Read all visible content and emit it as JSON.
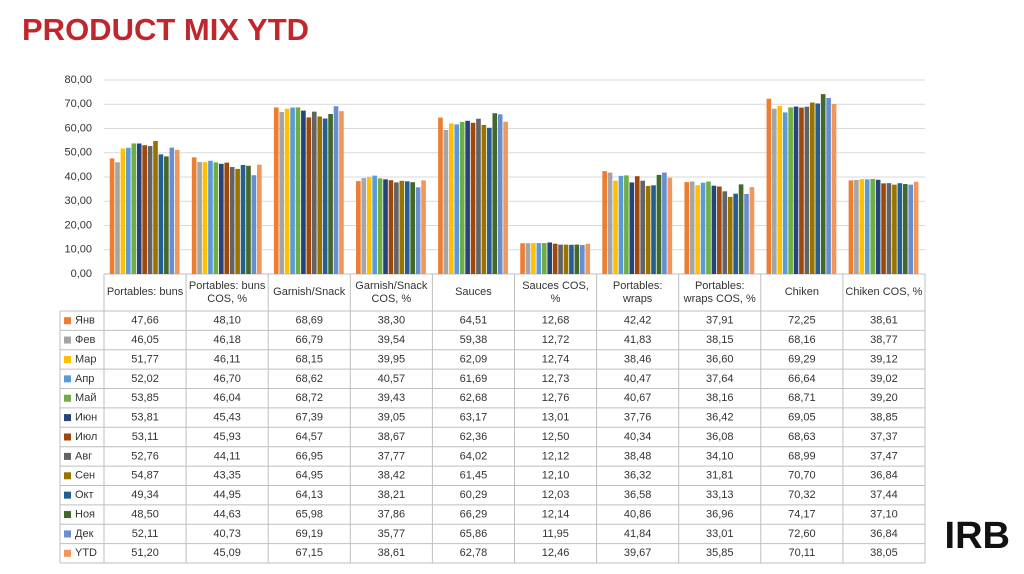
{
  "chart_data": {
    "type": "bar",
    "title": "PRODUCT MIX YTD",
    "logo": "IRB",
    "categories": [
      "Portables: buns",
      "Portables: buns COS, %",
      "Garnish/Snack",
      "Garnish/Snack COS, %",
      "Sauces",
      "Sauces COS, %",
      "Portables: wraps",
      "Portables: wraps COS, %",
      "Chiken",
      "Chiken COS, %"
    ],
    "ylim": [
      0,
      80
    ],
    "yticks": [
      {
        "value": 0,
        "label": "0,00"
      },
      {
        "value": 10,
        "label": "10,00"
      },
      {
        "value": 20,
        "label": "20,00"
      },
      {
        "value": 30,
        "label": "30,00"
      },
      {
        "value": 40,
        "label": "40,00"
      },
      {
        "value": 50,
        "label": "50,00"
      },
      {
        "value": 60,
        "label": "60,00"
      },
      {
        "value": 70,
        "label": "70,00"
      },
      {
        "value": 80,
        "label": "80,00"
      }
    ],
    "grid": true,
    "series": [
      {
        "name": "Янв",
        "color": "#ED7D31",
        "values": [
          47.66,
          48.1,
          68.69,
          38.3,
          64.51,
          12.68,
          42.42,
          37.91,
          72.25,
          38.61
        ],
        "value_labels": [
          "47,66",
          "48,10",
          "68,69",
          "38,30",
          "64,51",
          "12,68",
          "42,42",
          "37,91",
          "72,25",
          "38,61"
        ]
      },
      {
        "name": "Фев",
        "color": "#A5A5A5",
        "values": [
          46.05,
          46.18,
          66.79,
          39.54,
          59.38,
          12.72,
          41.83,
          38.15,
          68.16,
          38.77
        ],
        "value_labels": [
          "46,05",
          "46,18",
          "66,79",
          "39,54",
          "59,38",
          "12,72",
          "41,83",
          "38,15",
          "68,16",
          "38,77"
        ]
      },
      {
        "name": "Мар",
        "color": "#FFC000",
        "values": [
          51.77,
          46.11,
          68.15,
          39.95,
          62.09,
          12.74,
          38.46,
          36.6,
          69.29,
          39.12
        ],
        "value_labels": [
          "51,77",
          "46,11",
          "68,15",
          "39,95",
          "62,09",
          "12,74",
          "38,46",
          "36,60",
          "69,29",
          "39,12"
        ]
      },
      {
        "name": "Апр",
        "color": "#5B9BD5",
        "values": [
          52.02,
          46.7,
          68.62,
          40.57,
          61.69,
          12.73,
          40.47,
          37.64,
          66.64,
          39.02
        ],
        "value_labels": [
          "52,02",
          "46,70",
          "68,62",
          "40,57",
          "61,69",
          "12,73",
          "40,47",
          "37,64",
          "66,64",
          "39,02"
        ]
      },
      {
        "name": "Май",
        "color": "#70AD47",
        "values": [
          53.85,
          46.04,
          68.72,
          39.43,
          62.68,
          12.76,
          40.67,
          38.16,
          68.71,
          39.2
        ],
        "value_labels": [
          "53,85",
          "46,04",
          "68,72",
          "39,43",
          "62,68",
          "12,76",
          "40,67",
          "38,16",
          "68,71",
          "39,20"
        ]
      },
      {
        "name": "Июн",
        "color": "#264478",
        "values": [
          53.81,
          45.43,
          67.39,
          39.05,
          63.17,
          13.01,
          37.76,
          36.42,
          69.05,
          38.85
        ],
        "value_labels": [
          "53,81",
          "45,43",
          "67,39",
          "39,05",
          "63,17",
          "13,01",
          "37,76",
          "36,42",
          "69,05",
          "38,85"
        ]
      },
      {
        "name": "Июл",
        "color": "#9E480E",
        "values": [
          53.11,
          45.93,
          64.57,
          38.67,
          62.36,
          12.5,
          40.34,
          36.08,
          68.63,
          37.37
        ],
        "value_labels": [
          "53,11",
          "45,93",
          "64,57",
          "38,67",
          "62,36",
          "12,50",
          "40,34",
          "36,08",
          "68,63",
          "37,37"
        ]
      },
      {
        "name": "Авг",
        "color": "#636363",
        "values": [
          52.76,
          44.11,
          66.95,
          37.77,
          64.02,
          12.12,
          38.48,
          34.1,
          68.99,
          37.47
        ],
        "value_labels": [
          "52,76",
          "44,11",
          "66,95",
          "37,77",
          "64,02",
          "12,12",
          "38,48",
          "34,10",
          "68,99",
          "37,47"
        ]
      },
      {
        "name": "Сен",
        "color": "#997300",
        "values": [
          54.87,
          43.35,
          64.95,
          38.42,
          61.45,
          12.1,
          36.32,
          31.81,
          70.7,
          36.84
        ],
        "value_labels": [
          "54,87",
          "43,35",
          "64,95",
          "38,42",
          "61,45",
          "12,10",
          "36,32",
          "31,81",
          "70,70",
          "36,84"
        ]
      },
      {
        "name": "Окт",
        "color": "#255E91",
        "values": [
          49.34,
          44.95,
          64.13,
          38.21,
          60.29,
          12.03,
          36.58,
          33.13,
          70.32,
          37.44
        ],
        "value_labels": [
          "49,34",
          "44,95",
          "64,13",
          "38,21",
          "60,29",
          "12,03",
          "36,58",
          "33,13",
          "70,32",
          "37,44"
        ]
      },
      {
        "name": "Ноя",
        "color": "#43682B",
        "values": [
          48.5,
          44.63,
          65.98,
          37.86,
          66.29,
          12.14,
          40.86,
          36.96,
          74.17,
          37.1
        ],
        "value_labels": [
          "48,50",
          "44,63",
          "65,98",
          "37,86",
          "66,29",
          "12,14",
          "40,86",
          "36,96",
          "74,17",
          "37,10"
        ]
      },
      {
        "name": "Дек",
        "color": "#698ED0",
        "values": [
          52.11,
          40.73,
          69.19,
          35.77,
          65.86,
          11.95,
          41.84,
          33.01,
          72.6,
          36.84
        ],
        "value_labels": [
          "52,11",
          "40,73",
          "69,19",
          "35,77",
          "65,86",
          "11,95",
          "41,84",
          "33,01",
          "72,60",
          "36,84"
        ]
      },
      {
        "name": "YTD",
        "color": "#F1975A",
        "values": [
          51.2,
          45.09,
          67.15,
          38.61,
          62.78,
          12.46,
          39.67,
          35.85,
          70.11,
          38.05
        ],
        "value_labels": [
          "51,20",
          "45,09",
          "67,15",
          "38,61",
          "62,78",
          "12,46",
          "39,67",
          "35,85",
          "70,11",
          "38,05"
        ]
      }
    ]
  }
}
